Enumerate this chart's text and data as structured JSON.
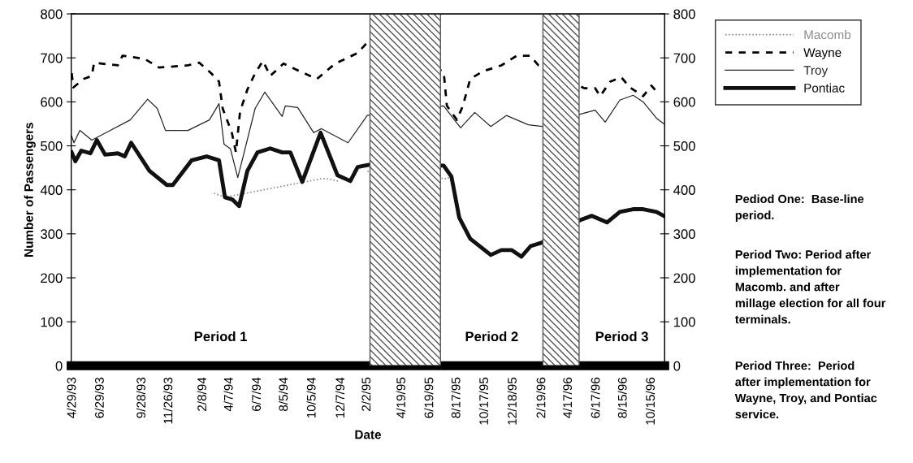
{
  "chart_data": {
    "type": "line",
    "xlabel": "Date",
    "ylabel": "Number of Passengers",
    "xlim": [
      "1993-04-26",
      "1996-11-13"
    ],
    "ylim": [
      0,
      800
    ],
    "yticks": [
      0,
      100,
      200,
      300,
      400,
      500,
      600,
      700,
      800
    ],
    "y2lim": [
      0,
      800
    ],
    "y2ticks": [
      0,
      100,
      200,
      300,
      400,
      500,
      600,
      700,
      800
    ],
    "xticks": [
      {
        "value": "1993-04-29",
        "label": "4/29/93"
      },
      {
        "value": "1993-06-29",
        "label": "6/29/93"
      },
      {
        "value": "1993-09-28",
        "label": "9/28/93"
      },
      {
        "value": "1993-11-26",
        "label": "11/26/93"
      },
      {
        "value": "1994-02-08",
        "label": "2/8/94"
      },
      {
        "value": "1994-04-07",
        "label": "4/7/94"
      },
      {
        "value": "1994-06-07",
        "label": "6/7/94"
      },
      {
        "value": "1994-08-05",
        "label": "8/5/94"
      },
      {
        "value": "1994-10-05",
        "label": "10/5/94"
      },
      {
        "value": "1994-12-07",
        "label": "12/7/94"
      },
      {
        "value": "1995-02-02",
        "label": "2/2/95"
      },
      {
        "value": "1995-04-19",
        "label": "4/19/95"
      },
      {
        "value": "1995-06-19",
        "label": "6/19/95"
      },
      {
        "value": "1995-08-17",
        "label": "8/17/95"
      },
      {
        "value": "1995-10-17",
        "label": "10/17/95"
      },
      {
        "value": "1995-12-18",
        "label": "12/18/95"
      },
      {
        "value": "1996-02-19",
        "label": "2/19/96"
      },
      {
        "value": "1996-04-17",
        "label": "4/17/96"
      },
      {
        "value": "1996-06-17",
        "label": "6/17/96"
      },
      {
        "value": "1996-08-15",
        "label": "8/15/96"
      },
      {
        "value": "1996-10-15",
        "label": "10/15/96"
      }
    ],
    "series": [
      {
        "name": "Macomb",
        "color": "#8c8c8c",
        "line_style": "dotted",
        "x": [
          "1994-03-04",
          "1994-03-18",
          "1994-04-01",
          "1994-10-28",
          "1994-11-12",
          "1994-11-30",
          "1995-01-23",
          "1995-02-02",
          "1995-07-26",
          "1995-08-08"
        ],
        "values": [
          392,
          387,
          384,
          426,
          424,
          420,
          null,
          442,
          425,
          434
        ]
      },
      {
        "name": "Wayne",
        "color": "#000000",
        "line_style": "dashed",
        "x": [
          "1993-04-27",
          "1993-05-01",
          "1993-05-23",
          "1993-06-10",
          "1993-06-15",
          "1993-08-06",
          "1993-08-16",
          "1993-10-03",
          "1993-11-04",
          "1994-01-06",
          "1994-01-31",
          "1994-02-26",
          "1994-03-15",
          "1994-03-23",
          "1994-04-12",
          "1994-04-21",
          "1994-04-30",
          "1994-05-16",
          "1994-06-02",
          "1994-06-19",
          "1994-07-05",
          "1994-08-03",
          "1994-08-29",
          "1994-10-15",
          "1994-11-24",
          "1995-01-12",
          "1995-02-02",
          "1995-07-19",
          "1995-07-26",
          "1995-08-17",
          "1995-08-30",
          "1995-09-15",
          "1995-10-12",
          "1995-11-22",
          "1995-12-26",
          "1996-01-24",
          "1996-02-11",
          "1996-05-21",
          "1996-06-14",
          "1996-06-25",
          "1996-07-17",
          "1996-08-10",
          "1996-08-29",
          "1996-09-27",
          "1996-10-15",
          "1996-10-26"
        ],
        "values": [
          665,
          633,
          652,
          659,
          689,
          683,
          705,
          698,
          678,
          683,
          689,
          665,
          646,
          585,
          530,
          485,
          578,
          628,
          665,
          693,
          659,
          687,
          674,
          652,
          687,
          711,
          735,
          669,
          591,
          559,
          591,
          652,
          669,
          683,
          705,
          705,
          683,
          631,
          631,
          613,
          646,
          656,
          633,
          613,
          637,
          624
        ]
      },
      {
        "name": "Troy",
        "color": "#262626",
        "line_style": "solid",
        "x": [
          "1993-04-27",
          "1993-05-02",
          "1993-05-15",
          "1993-06-10",
          "1993-07-13",
          "1993-09-02",
          "1993-10-10",
          "1993-10-31",
          "1993-11-18",
          "1994-01-06",
          "1994-02-22",
          "1994-03-15",
          "1994-03-26",
          "1994-04-09",
          "1994-04-25",
          "1994-05-09",
          "1994-06-02",
          "1994-06-23",
          "1994-07-31",
          "1994-08-07",
          "1994-09-03",
          "1994-10-08",
          "1994-10-25",
          "1994-12-22",
          "1995-02-02",
          "1995-07-19",
          "1995-08-25",
          "1995-09-25",
          "1995-10-30",
          "1995-12-03",
          "1996-01-20",
          "1996-02-19",
          "1996-05-12",
          "1996-06-14",
          "1996-07-06",
          "1996-08-07",
          "1996-09-05",
          "1996-09-27",
          "1996-10-26",
          "1996-11-11"
        ],
        "values": [
          522,
          507,
          535,
          513,
          531,
          559,
          606,
          585,
          535,
          535,
          559,
          596,
          504,
          493,
          428,
          485,
          585,
          622,
          567,
          591,
          587,
          530,
          539,
          507,
          569,
          591,
          541,
          576,
          544,
          569,
          548,
          544,
          572,
          581,
          554,
          604,
          615,
          600,
          563,
          550
        ]
      },
      {
        "name": "Pontiac",
        "color": "#111111",
        "line_style": "solid",
        "x": [
          "1993-04-27",
          "1993-05-05",
          "1993-05-18",
          "1993-06-07",
          "1993-06-21",
          "1993-07-09",
          "1993-08-06",
          "1993-08-21",
          "1993-09-04",
          "1993-10-14",
          "1993-11-21",
          "1993-12-04",
          "1994-01-14",
          "1994-02-16",
          "1994-03-15",
          "1994-03-28",
          "1994-04-13",
          "1994-04-28",
          "1994-05-16",
          "1994-06-07",
          "1994-07-05",
          "1994-07-31",
          "1994-08-18",
          "1994-09-13",
          "1994-10-23",
          "1994-11-29",
          "1994-12-27",
          "1995-01-12",
          "1995-02-06",
          "1995-07-19",
          "1995-08-05",
          "1995-08-22",
          "1995-09-15",
          "1995-10-30",
          "1995-11-22",
          "1995-12-15",
          "1996-01-05",
          "1996-01-25",
          "1996-02-19",
          "1996-05-12",
          "1996-06-07",
          "1996-07-10",
          "1996-08-07",
          "1996-09-05",
          "1996-09-27",
          "1996-10-26",
          "1996-11-11"
        ],
        "values": [
          485,
          465,
          489,
          483,
          513,
          480,
          483,
          476,
          507,
          443,
          411,
          411,
          467,
          476,
          467,
          383,
          378,
          363,
          443,
          485,
          494,
          485,
          485,
          418,
          530,
          433,
          420,
          452,
          457,
          455,
          430,
          337,
          289,
          252,
          263,
          263,
          248,
          272,
          280,
          331,
          341,
          326,
          350,
          356,
          356,
          350,
          341
        ]
      }
    ],
    "bands": [
      {
        "axis": "x",
        "from": "1995-02-08",
        "to": "1995-07-12",
        "color": "#555555"
      },
      {
        "axis": "x",
        "from": "1996-02-21",
        "to": "1996-05-10",
        "color": "#555555"
      }
    ],
    "legend": "top right",
    "grid": false,
    "annotations": [
      "Period 1",
      "Period 2",
      "Period 3",
      "Pediod One:  Base-line\nperiod.",
      "Period Two: Period after\nimplementation for\nMacomb. and after\nmillage election for all four\nterminals.",
      "Period Three:  Period\nafter implementation for\nWayne, Troy, and Pontiac\nservice."
    ]
  }
}
